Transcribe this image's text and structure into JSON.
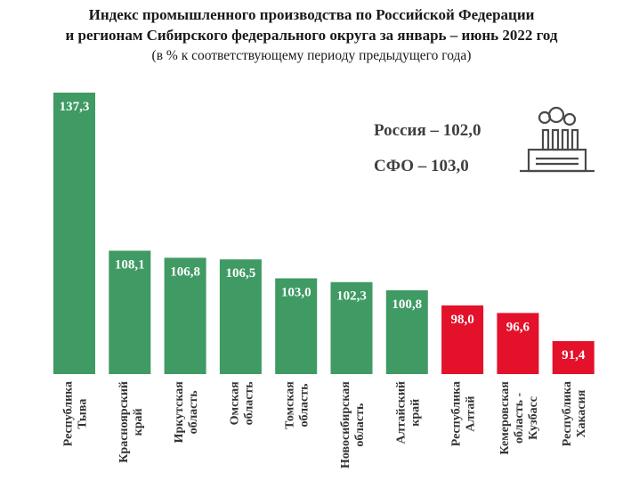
{
  "header": {
    "title_line1": "Индекс промышленного производства по Российской Федерации",
    "title_line2": "и регионам Сибирского федерального округа за январь – июнь 2022 год",
    "subtitle": "(в % к соответствующему периоду предыдущего года)"
  },
  "summary": {
    "russia": "Россия – 102,0",
    "sfo": "СФО – 103,0"
  },
  "icons": {
    "factory": "factory-icon"
  },
  "colors": {
    "green": "#3f9a63",
    "red": "#e3112a",
    "label_text": "#ffffff",
    "axis_text": "#333333"
  },
  "chart_data": {
    "type": "bar",
    "title": "Индекс промышленного производства по Российской Федерации и регионам Сибирского федерального округа за январь – июнь 2022 год",
    "subtitle": "(в % к соответствующему периоду предыдущего года)",
    "categories": [
      [
        "Республика",
        "Тыва"
      ],
      [
        "Красноярский",
        "край"
      ],
      [
        "Иркутская",
        "область"
      ],
      [
        "Омская",
        "область"
      ],
      [
        "Томская",
        "область"
      ],
      [
        "Новосибирская",
        "область"
      ],
      [
        "Алтайский",
        "край"
      ],
      [
        "Республика",
        "Алтай"
      ],
      [
        "Кемеровская",
        "область -",
        "Кузбасс"
      ],
      [
        "Республика",
        "Хакасия"
      ]
    ],
    "values": [
      137.3,
      108.1,
      106.8,
      106.5,
      103.0,
      102.3,
      100.8,
      98.0,
      96.6,
      91.4
    ],
    "value_labels": [
      "137,3",
      "108,1",
      "106,8",
      "106,5",
      "103,0",
      "102,3",
      "100,8",
      "98,0",
      "96,6",
      "91,4"
    ],
    "bar_colors": [
      "#3f9a63",
      "#3f9a63",
      "#3f9a63",
      "#3f9a63",
      "#3f9a63",
      "#3f9a63",
      "#3f9a63",
      "#e3112a",
      "#e3112a",
      "#e3112a"
    ],
    "grid": false,
    "legend": "none"
  }
}
